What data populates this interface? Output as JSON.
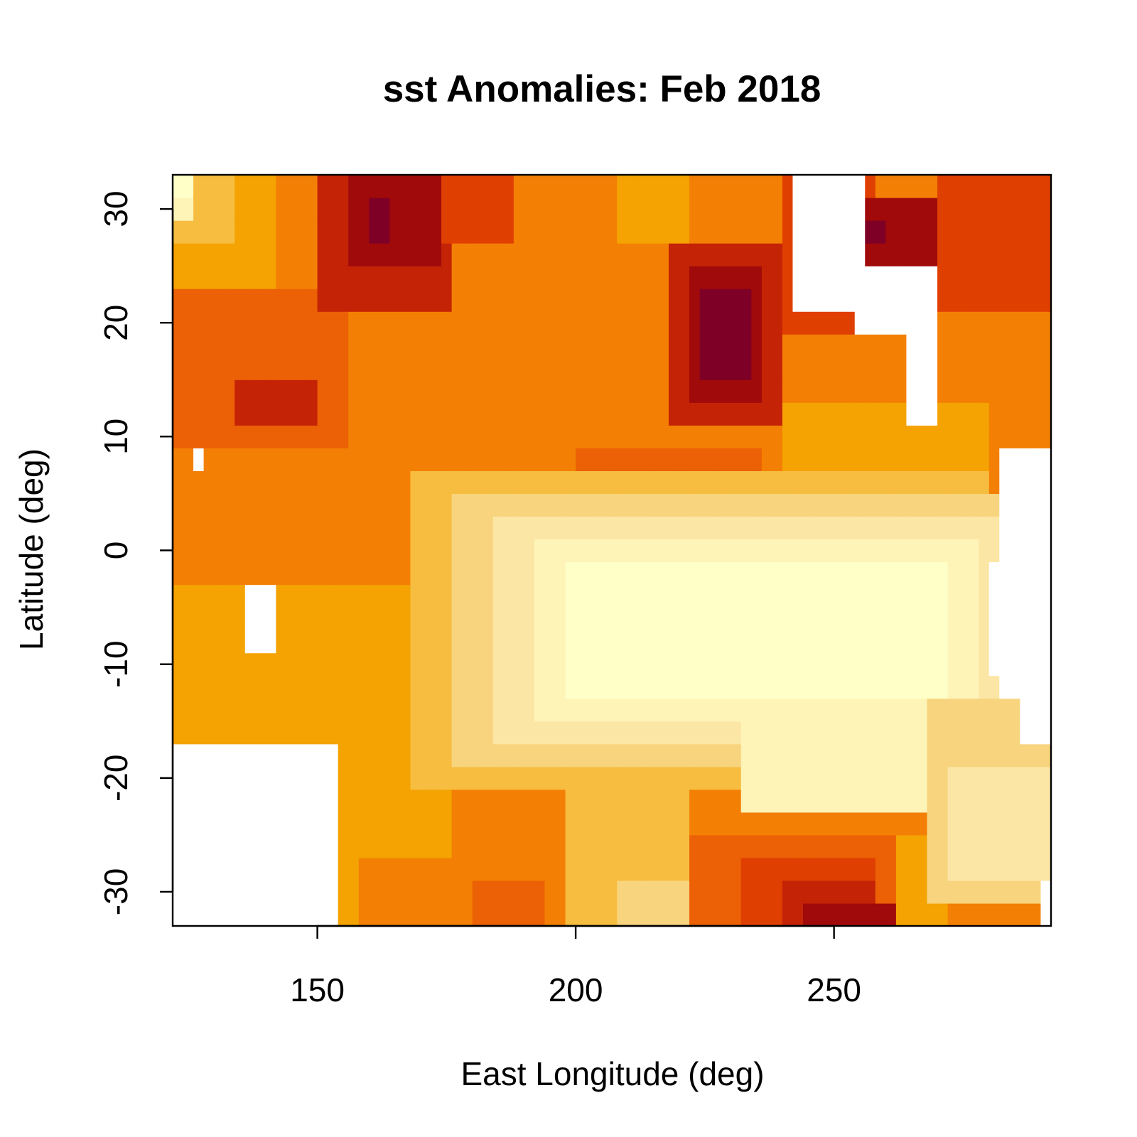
{
  "chart_data": {
    "type": "heatmap",
    "title": "sst Anomalies: Feb 2018",
    "xlabel": "East Longitude (deg)",
    "ylabel": "Latitude (deg)",
    "xlim": [
      122,
      292
    ],
    "ylim": [
      -33,
      33
    ],
    "x_ticks": [
      150,
      200,
      250
    ],
    "y_ticks": [
      -30,
      -20,
      -10,
      0,
      10,
      20,
      30
    ],
    "grid": false,
    "legend": "none",
    "cell_size_deg": 2,
    "palette": [
      "#7e0026",
      "#a00a0a",
      "#c42306",
      "#e03f02",
      "#ec6006",
      "#f38004",
      "#f4a302",
      "#f7bd40",
      "#f8d47e",
      "#fbe6a6",
      "#fef4b8",
      "#ffffc8"
    ],
    "missing_color": "#ffffff",
    "regions": [
      {
        "lon": [
          122,
          292
        ],
        "lat": [
          -33,
          33
        ],
        "level": 5
      },
      {
        "lon": [
          122,
          142
        ],
        "lat": [
          24,
          33
        ],
        "level": 6
      },
      {
        "lon": [
          122,
          134
        ],
        "lat": [
          28,
          33
        ],
        "level": 7
      },
      {
        "lon": [
          122,
          126
        ],
        "lat": [
          30,
          33
        ],
        "level": 10
      },
      {
        "lon": [
          122,
          126
        ],
        "lat": [
          31,
          33
        ],
        "level": 11
      },
      {
        "lon": [
          122,
          156
        ],
        "lat": [
          10,
          24
        ],
        "level": 4
      },
      {
        "lon": [
          134,
          150
        ],
        "lat": [
          12,
          16
        ],
        "level": 2
      },
      {
        "lon": [
          150,
          176
        ],
        "lat": [
          22,
          33
        ],
        "level": 2
      },
      {
        "lon": [
          156,
          174
        ],
        "lat": [
          25,
          33
        ],
        "level": 1
      },
      {
        "lon": [
          160,
          164
        ],
        "lat": [
          28,
          31
        ],
        "level": 0
      },
      {
        "lon": [
          174,
          188
        ],
        "lat": [
          28,
          33
        ],
        "level": 3
      },
      {
        "lon": [
          208,
          222
        ],
        "lat": [
          28,
          33
        ],
        "level": 6
      },
      {
        "lon": [
          218,
          240
        ],
        "lat": [
          12,
          28
        ],
        "level": 2
      },
      {
        "lon": [
          222,
          236
        ],
        "lat": [
          14,
          26
        ],
        "level": 1
      },
      {
        "lon": [
          224,
          234
        ],
        "lat": [
          15,
          24
        ],
        "level": 0
      },
      {
        "lon": [
          240,
          258
        ],
        "lat": [
          20,
          33
        ],
        "level": 3
      },
      {
        "lon": [
          256,
          270
        ],
        "lat": [
          20,
          31
        ],
        "level": 1
      },
      {
        "lon": [
          256,
          260
        ],
        "lat": [
          27,
          30
        ],
        "level": 0
      },
      {
        "lon": [
          270,
          292
        ],
        "lat": [
          22,
          33
        ],
        "level": 3
      },
      {
        "lon": [
          278,
          292
        ],
        "lat": [
          12,
          22
        ],
        "level": 5
      },
      {
        "lon": [
          122,
          176
        ],
        "lat": [
          -16,
          -2
        ],
        "level": 6
      },
      {
        "lon": [
          122,
          160
        ],
        "lat": [
          -16,
          -8
        ],
        "level": 6
      },
      {
        "lon": [
          154,
          176
        ],
        "lat": [
          -33,
          -16
        ],
        "level": 6
      },
      {
        "lon": [
          158,
          176
        ],
        "lat": [
          -33,
          -26
        ],
        "level": 5
      },
      {
        "lon": [
          176,
          198
        ],
        "lat": [
          -33,
          -14
        ],
        "level": 5
      },
      {
        "lon": [
          180,
          194
        ],
        "lat": [
          -33,
          -29
        ],
        "level": 4
      },
      {
        "lon": [
          198,
          222
        ],
        "lat": [
          -33,
          -20
        ],
        "level": 7
      },
      {
        "lon": [
          208,
          222
        ],
        "lat": [
          -33,
          -29
        ],
        "level": 8
      },
      {
        "lon": [
          222,
          262
        ],
        "lat": [
          -33,
          -24
        ],
        "level": 4
      },
      {
        "lon": [
          232,
          258
        ],
        "lat": [
          -33,
          -26
        ],
        "level": 3
      },
      {
        "lon": [
          240,
          258
        ],
        "lat": [
          -33,
          -29
        ],
        "level": 2
      },
      {
        "lon": [
          244,
          262
        ],
        "lat": [
          -33,
          -31
        ],
        "level": 1
      },
      {
        "lon": [
          248,
          262
        ],
        "lat": [
          -33,
          -32
        ],
        "level": 0
      },
      {
        "lon": [
          262,
          272
        ],
        "lat": [
          -33,
          -24
        ],
        "level": 6
      },
      {
        "lon": [
          176,
          240
        ],
        "lat": [
          4,
          12
        ],
        "level": 5
      },
      {
        "lon": [
          200,
          236
        ],
        "lat": [
          6,
          10
        ],
        "level": 4
      },
      {
        "lon": [
          240,
          280
        ],
        "lat": [
          8,
          14
        ],
        "level": 6
      },
      {
        "lon": [
          168,
          280
        ],
        "lat": [
          -20,
          8
        ],
        "level": 7
      },
      {
        "lon": [
          176,
          284
        ],
        "lat": [
          -18,
          6
        ],
        "level": 8
      },
      {
        "lon": [
          184,
          282
        ],
        "lat": [
          -16,
          4
        ],
        "level": 9
      },
      {
        "lon": [
          192,
          278
        ],
        "lat": [
          -14,
          2
        ],
        "level": 10
      },
      {
        "lon": [
          198,
          272
        ],
        "lat": [
          -12,
          0
        ],
        "level": 11
      },
      {
        "lon": [
          232,
          268
        ],
        "lat": [
          -22,
          -12
        ],
        "level": 10
      },
      {
        "lon": [
          268,
          292
        ],
        "lat": [
          -30,
          -12
        ],
        "level": 8
      },
      {
        "lon": [
          272,
          292
        ],
        "lat": [
          -28,
          -18
        ],
        "level": 9
      },
      {
        "lon": [
          122,
          154
        ],
        "lat": [
          -33,
          -17
        ],
        "level": -1
      },
      {
        "lon": [
          124,
          134
        ],
        "lat": [
          -33,
          -32
        ],
        "level": 6
      },
      {
        "lon": [
          136,
          142
        ],
        "lat": [
          -8,
          -2
        ],
        "level": -1
      },
      {
        "lon": [
          126,
          128
        ],
        "lat": [
          8,
          10
        ],
        "level": -1
      },
      {
        "lon": [
          242,
          256
        ],
        "lat": [
          22,
          33
        ],
        "level": -1
      },
      {
        "lon": [
          254,
          270
        ],
        "lat": [
          19,
          26
        ],
        "level": -1
      },
      {
        "lon": [
          264,
          270
        ],
        "lat": [
          12,
          20
        ],
        "level": -1
      },
      {
        "lon": [
          282,
          292
        ],
        "lat": [
          -12,
          10
        ],
        "level": -1
      },
      {
        "lon": [
          286,
          292
        ],
        "lat": [
          -17,
          -12
        ],
        "level": -1
      },
      {
        "lon": [
          280,
          292
        ],
        "lat": [
          -10,
          0
        ],
        "level": -1
      },
      {
        "lon": [
          290,
          292
        ],
        "lat": [
          -33,
          -28
        ],
        "level": -1
      }
    ]
  }
}
